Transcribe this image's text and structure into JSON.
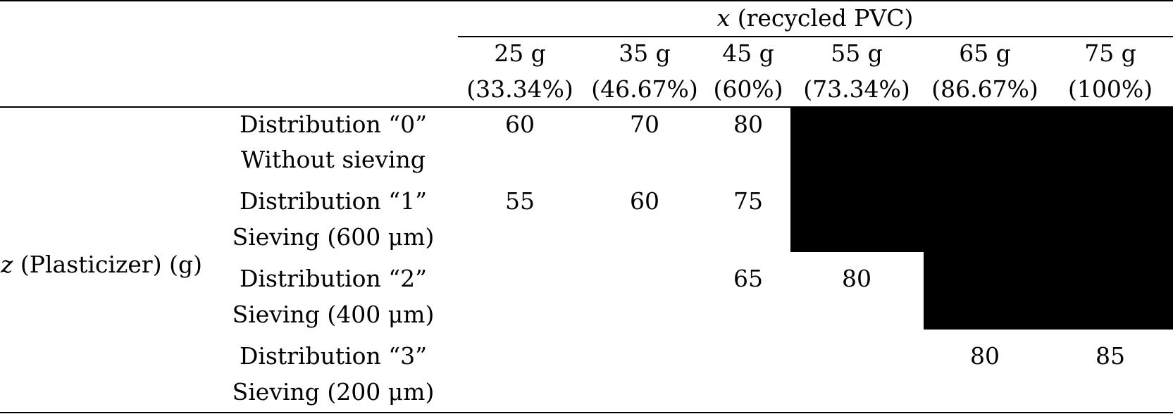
{
  "table": {
    "column_group_header": {
      "symbol": "x",
      "label": " (recycled PVC)"
    },
    "row_group_header": {
      "symbol": "z",
      "label": " (Plasticizer) (g)"
    },
    "columns": [
      {
        "mass": "25 g",
        "percent": "(33.34%)"
      },
      {
        "mass": "35 g",
        "percent": "(46.67%)"
      },
      {
        "mass": "45 g",
        "percent": "(60%)"
      },
      {
        "mass": "55 g",
        "percent": "(73.34%)"
      },
      {
        "mass": "65 g",
        "percent": "(86.67%)"
      },
      {
        "mass": "75 g",
        "percent": "(100%)"
      }
    ],
    "rows": [
      {
        "distribution": "Distribution “0”",
        "sieving": "Without sieving",
        "values": [
          "60",
          "70",
          "80",
          "",
          "",
          ""
        ]
      },
      {
        "distribution": "Distribution “1”",
        "sieving": "Sieving (600 μm)",
        "values": [
          "55",
          "60",
          "75",
          "",
          "",
          ""
        ]
      },
      {
        "distribution": "Distribution “2”",
        "sieving": "Sieving (400 μm)",
        "values": [
          "",
          "",
          "65",
          "80",
          "",
          ""
        ]
      },
      {
        "distribution": "Distribution “3”",
        "sieving": "Sieving (200 μm)",
        "values": [
          "",
          "",
          "",
          "",
          "80",
          "85"
        ]
      }
    ],
    "shade_color": "#000000"
  }
}
